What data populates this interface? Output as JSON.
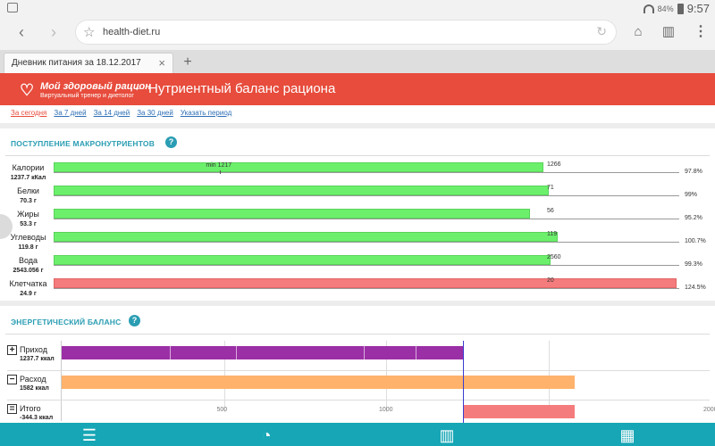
{
  "status_bar": {
    "battery": "84%",
    "time": "9:57"
  },
  "browser": {
    "url": "health-diet.ru",
    "tab_title": "Дневник питания за 18.12.2017",
    "tab_close": "×",
    "new_tab": "+"
  },
  "header": {
    "logo_title": "Мой здоровый рацион",
    "logo_subtitle": "Виртуальный тренер и диетолог",
    "title": "Нутриентный баланс рациона"
  },
  "period_links": [
    {
      "label": "За сегодня",
      "active": true
    },
    {
      "label": "За 7 дней",
      "active": false
    },
    {
      "label": "За 14 дней",
      "active": false
    },
    {
      "label": "За 30 дней",
      "active": false
    },
    {
      "label": "Указать период",
      "active": false
    }
  ],
  "macro_section": {
    "title": "ПОСТУПЛЕНИЕ МАКРОНУТРИЕНТОВ",
    "help": "?"
  },
  "energy_section": {
    "title": "ЭНЕРГЕТИЧЕСКИЙ БАЛАНС",
    "help": "?"
  },
  "chart_data": [
    {
      "type": "bar",
      "title": "ПОСТУПЛЕНИЕ МАКРОНУТРИЕНТОВ",
      "rows": [
        {
          "name": "Калории",
          "value_label": "1237.7 кКал",
          "norm": "1266",
          "min_label": "min 1217",
          "percent": "97.8%",
          "fraction": 0.978,
          "status": "ok"
        },
        {
          "name": "Белки",
          "value_label": "70.3 г",
          "norm": "71",
          "percent": "99%",
          "fraction": 0.99,
          "status": "ok"
        },
        {
          "name": "Жиры",
          "value_label": "53.3 г",
          "norm": "56",
          "percent": "95.2%",
          "fraction": 0.952,
          "status": "ok"
        },
        {
          "name": "Углеводы",
          "value_label": "119.8 г",
          "norm": "119",
          "percent": "100.7%",
          "fraction": 1.007,
          "status": "ok"
        },
        {
          "name": "Вода",
          "value_label": "2543.056 г",
          "norm": "2560",
          "percent": "99.3%",
          "fraction": 0.993,
          "status": "ok"
        },
        {
          "name": "Клетчатка",
          "value_label": "24.9 г",
          "norm": "20",
          "percent": "124.5%",
          "fraction": 1.245,
          "status": "over"
        }
      ],
      "colors": {
        "ok": "#6cf06c",
        "over": "#f57c7c"
      }
    },
    {
      "type": "bar",
      "title": "ЭНЕРГЕТИЧЕСКИЙ БАЛАНС",
      "xlim": [
        0,
        2000
      ],
      "x_ticks": [
        "500",
        "1000",
        "2000"
      ],
      "rows": [
        {
          "sign": "+",
          "name": "Приход",
          "value_label": "1237.7 ккал",
          "start": 0,
          "end": 1237.7,
          "color": "#9b2fa6"
        },
        {
          "sign": "−",
          "name": "Расход",
          "value_label": "1582 ккал",
          "start": 0,
          "end": 1582,
          "color": "#ffb26b"
        },
        {
          "sign": "=",
          "name": "Итого",
          "value_label": "-344.3 ккал",
          "start": 1237.7,
          "end": 1582,
          "color": "#f57c7c"
        }
      ]
    }
  ]
}
